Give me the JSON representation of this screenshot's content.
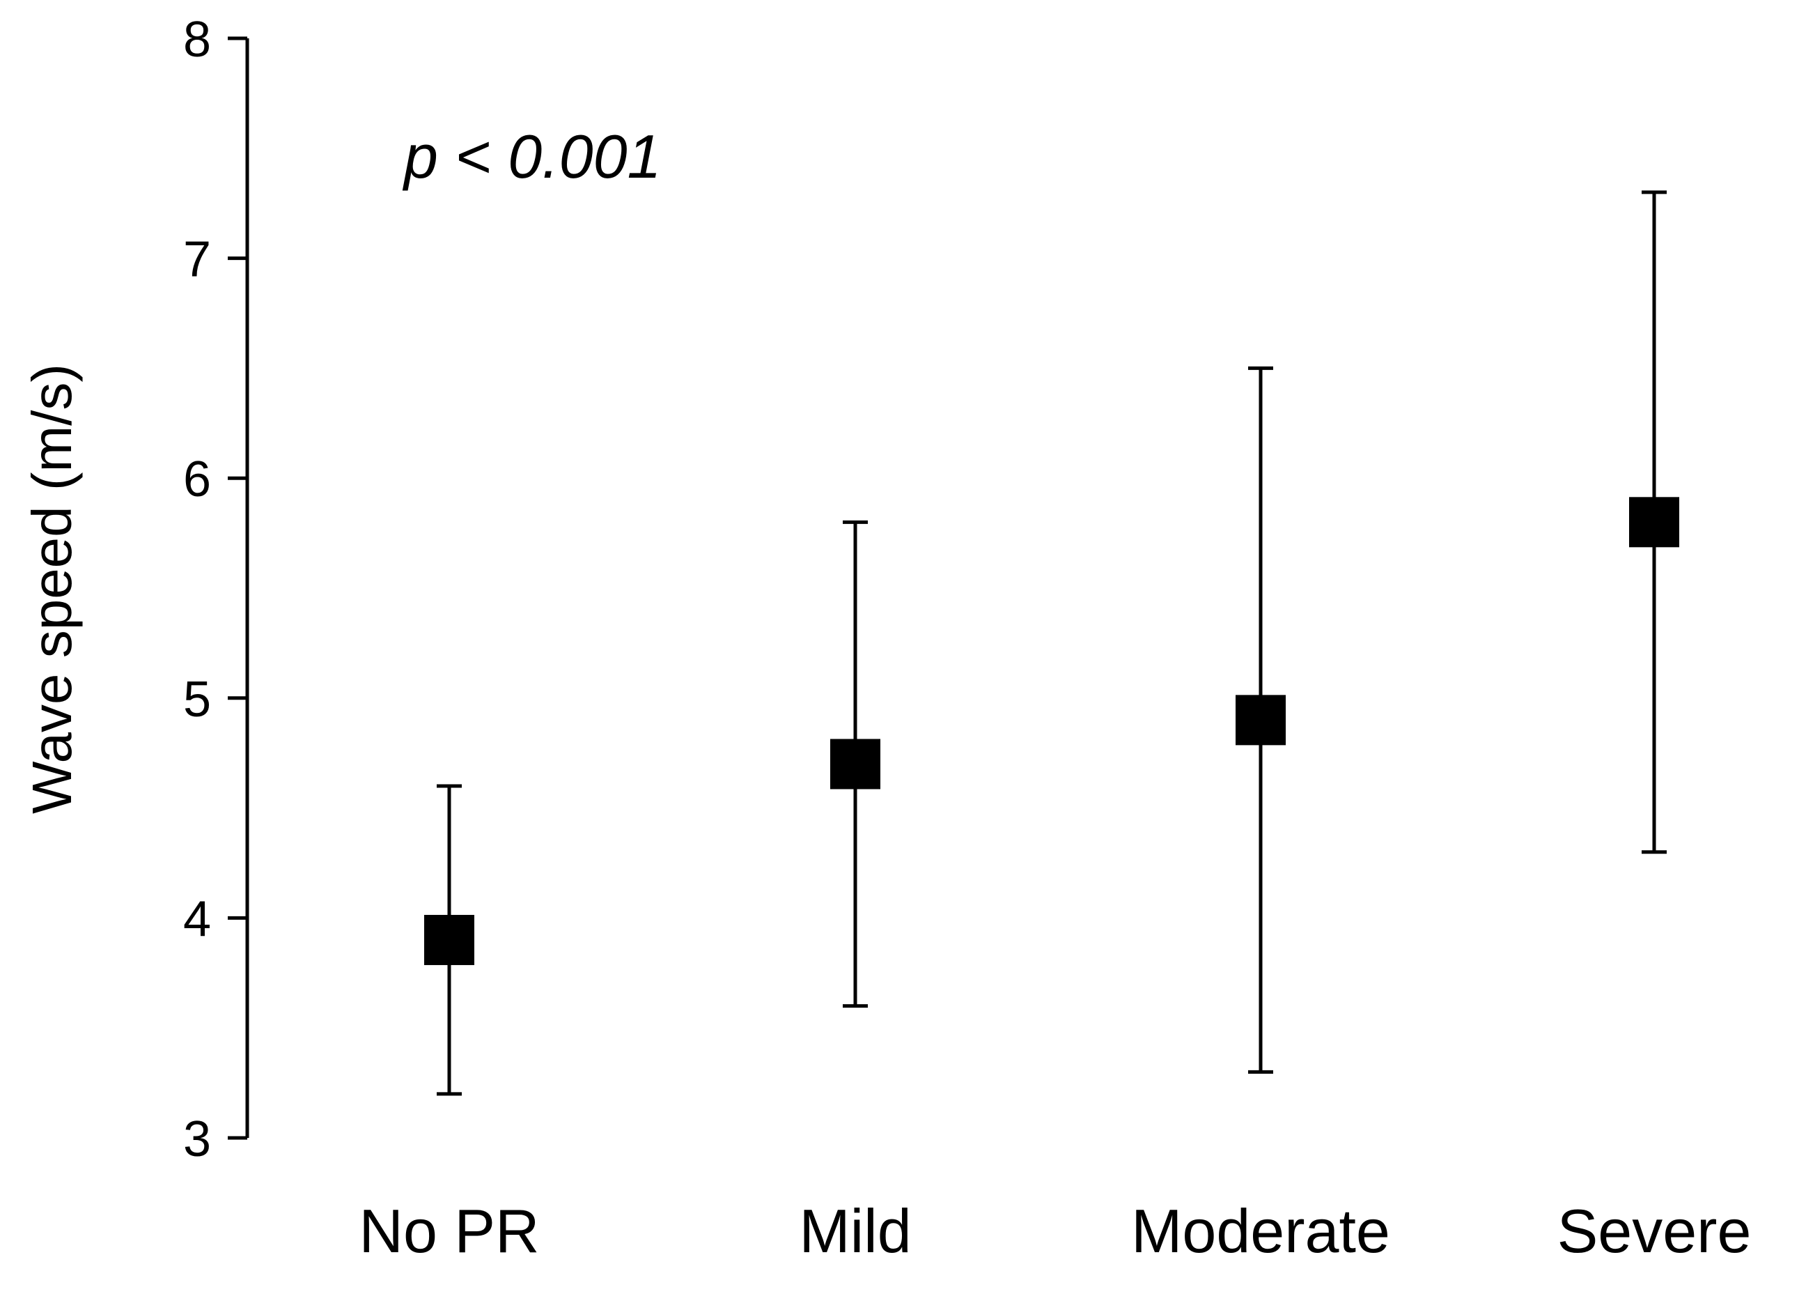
{
  "chart_data": {
    "type": "scatter",
    "title": "",
    "xlabel": "",
    "ylabel": "Wave speed (m/s)",
    "ylim": [
      3,
      8
    ],
    "yticks": [
      3,
      4,
      5,
      6,
      7,
      8
    ],
    "categories": [
      "No PR",
      "Mild",
      "Moderate",
      "Severe"
    ],
    "series": [
      {
        "values": [
          3.9,
          4.7,
          4.9,
          5.8
        ],
        "error_low": [
          3.2,
          3.6,
          3.3,
          4.3
        ],
        "error_high": [
          4.6,
          5.8,
          6.5,
          7.3
        ]
      }
    ],
    "annotation": "p < 0.001",
    "grid": false,
    "marker": "square",
    "color": "#000000"
  }
}
